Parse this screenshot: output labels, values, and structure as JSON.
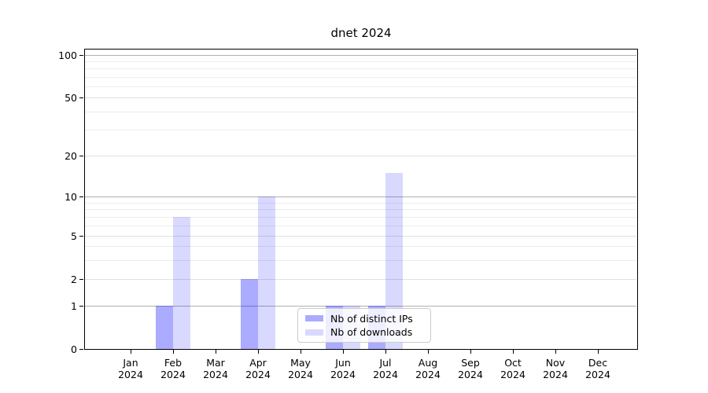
{
  "chart_data": {
    "type": "bar",
    "title": "dnet 2024",
    "x_year": "2024",
    "x_months": [
      "Jan",
      "Feb",
      "Mar",
      "Apr",
      "May",
      "Jun",
      "Jul",
      "Aug",
      "Sep",
      "Oct",
      "Nov",
      "Dec"
    ],
    "categories": [
      "Jan 2024",
      "Feb 2024",
      "Mar 2024",
      "Apr 2024",
      "May 2024",
      "Jun 2024",
      "Jul 2024",
      "Aug 2024",
      "Sep 2024",
      "Oct 2024",
      "Nov 2024",
      "Dec 2024"
    ],
    "series": [
      {
        "name": "Nb of distinct IPs",
        "color": "rgba(0,0,255,0.33)",
        "values": [
          0,
          1,
          0,
          2,
          0,
          1,
          1,
          0,
          0,
          0,
          0,
          0
        ]
      },
      {
        "name": "Nb of downloads",
        "color": "rgba(0,0,255,0.15)",
        "values": [
          0,
          7,
          0,
          10,
          0,
          1,
          15,
          0,
          0,
          0,
          0,
          0
        ]
      }
    ],
    "yscale": "symlog",
    "yticks": [
      0,
      1,
      2,
      5,
      10,
      20,
      50,
      100
    ],
    "ylim": [
      0,
      120
    ],
    "grid": true,
    "gridlines": {
      "strong": [
        1,
        10,
        100
      ],
      "medium": [
        2,
        5,
        20,
        50
      ],
      "faint": [
        3,
        4,
        6,
        7,
        8,
        9,
        30,
        40,
        60,
        70,
        80,
        90
      ]
    },
    "legend_position": "lower center"
  },
  "legend": {
    "items": [
      {
        "label": "Nb of distinct IPs",
        "color": "rgba(0,0,255,0.33)"
      },
      {
        "label": "Nb of downloads",
        "color": "rgba(0,0,255,0.15)"
      }
    ]
  }
}
